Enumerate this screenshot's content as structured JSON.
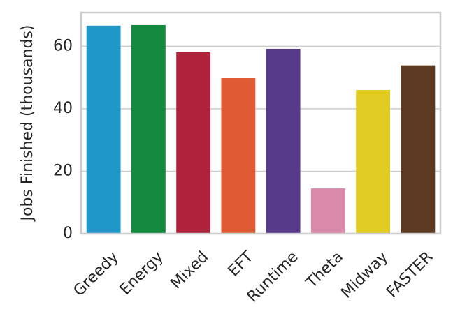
{
  "chart_data": {
    "type": "bar",
    "ylabel": "Jobs Finished (thousands)",
    "categories": [
      "Greedy",
      "Energy",
      "Mixed",
      "EFT",
      "Runtime",
      "Theta",
      "Midway",
      "FASTER"
    ],
    "values": [
      66.6,
      66.8,
      58.1,
      49.8,
      59.2,
      14.5,
      46.0,
      53.9
    ],
    "colors": [
      "#1f97c9",
      "#138a3e",
      "#b0213b",
      "#e05a33",
      "#573a8a",
      "#d98aaa",
      "#dfcb22",
      "#5c3a22"
    ],
    "ylim": [
      0,
      70.8
    ],
    "yticks": [
      0,
      20,
      40,
      60
    ],
    "grid": true
  }
}
